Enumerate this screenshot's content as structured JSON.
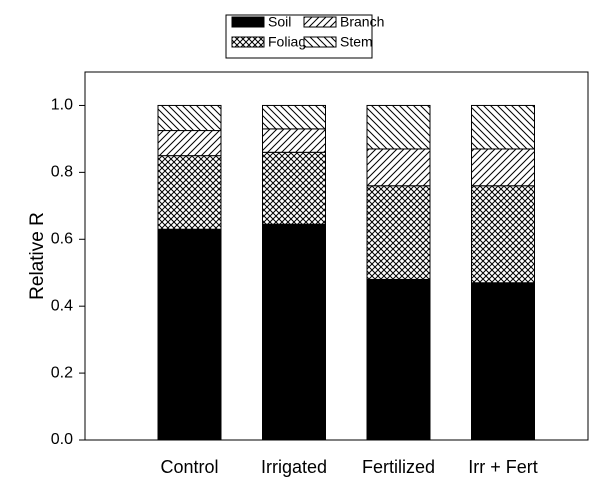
{
  "chart_data": {
    "type": "stacked_bar",
    "y_label": "Relative R",
    "categories": [
      "Control",
      "Irrigated",
      "Fertilized",
      "Irr + Fert"
    ],
    "series": [
      {
        "name": "Soil",
        "color": "#000000",
        "pattern": "solid",
        "values": [
          0.63,
          0.645,
          0.48,
          0.47
        ]
      },
      {
        "name": "Foliage",
        "color": "#000000",
        "pattern": "crosshatch",
        "values": [
          0.22,
          0.215,
          0.28,
          0.29
        ]
      },
      {
        "name": "Branch",
        "color": "#000000",
        "pattern": "forward",
        "values": [
          0.075,
          0.07,
          0.11,
          0.11
        ]
      },
      {
        "name": "Stem",
        "color": "#000000",
        "pattern": "backward",
        "values": [
          0.075,
          0.07,
          0.13,
          0.13
        ]
      }
    ],
    "ylim": [
      0,
      1.1
    ],
    "yticks": [
      {
        "value": 0,
        "label": "0.0"
      },
      {
        "value": 0.2,
        "label": "0.2"
      },
      {
        "value": 0.4,
        "label": "0.4"
      },
      {
        "value": 0.6,
        "label": "0.6"
      },
      {
        "value": 0.8,
        "label": "0.8"
      },
      {
        "value": 1,
        "label": "1.0"
      }
    ],
    "legend": "top"
  }
}
